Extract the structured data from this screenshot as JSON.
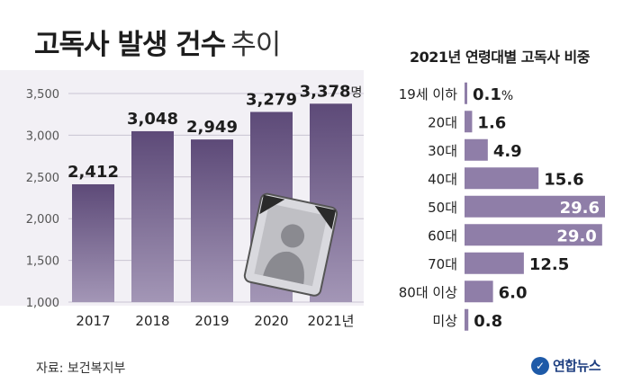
{
  "header": {
    "title_bold": "고독사 발생 건수",
    "title_light": "추이",
    "right_title": "2021년 연령대별 고독사 비중"
  },
  "footer": {
    "source": "자료: 보건복지부",
    "logo_text": "연합뉴스"
  },
  "colors": {
    "bar_dark": "#5d4a78",
    "bar_light": "#9a8db0",
    "hbar": "#8f7ea8",
    "background_band": "#f2f0f5"
  },
  "chart_data": [
    {
      "type": "bar",
      "title": "고독사 발생 건수 추이",
      "categories": [
        "2017",
        "2018",
        "2019",
        "2020",
        "2021년"
      ],
      "values": [
        2412,
        3048,
        2949,
        3279,
        3378
      ],
      "value_labels": [
        "2,412",
        "3,048",
        "2,949",
        "3,279",
        "3,378"
      ],
      "unit": "명",
      "ylim": [
        1000,
        3500
      ],
      "yticks": [
        1000,
        1500,
        2000,
        2500,
        3000,
        3500
      ],
      "ytick_labels": [
        "1,000",
        "1,500",
        "2,000",
        "2,500",
        "3,000",
        "3,500"
      ],
      "grid": true
    },
    {
      "type": "bar",
      "orientation": "horizontal",
      "title": "2021년 연령대별 고독사 비중",
      "categories": [
        "19세 이하",
        "20대",
        "30대",
        "40대",
        "50대",
        "60대",
        "70대",
        "80대 이상",
        "미상"
      ],
      "values": [
        0.1,
        1.6,
        4.9,
        15.6,
        29.6,
        29.0,
        12.5,
        6.0,
        0.8
      ],
      "value_labels": [
        "0.1",
        "1.6",
        "4.9",
        "15.6",
        "29.6",
        "29.0",
        "12.5",
        "6.0",
        "0.8"
      ],
      "unit": "%",
      "xlim": [
        0,
        29.6
      ]
    }
  ]
}
